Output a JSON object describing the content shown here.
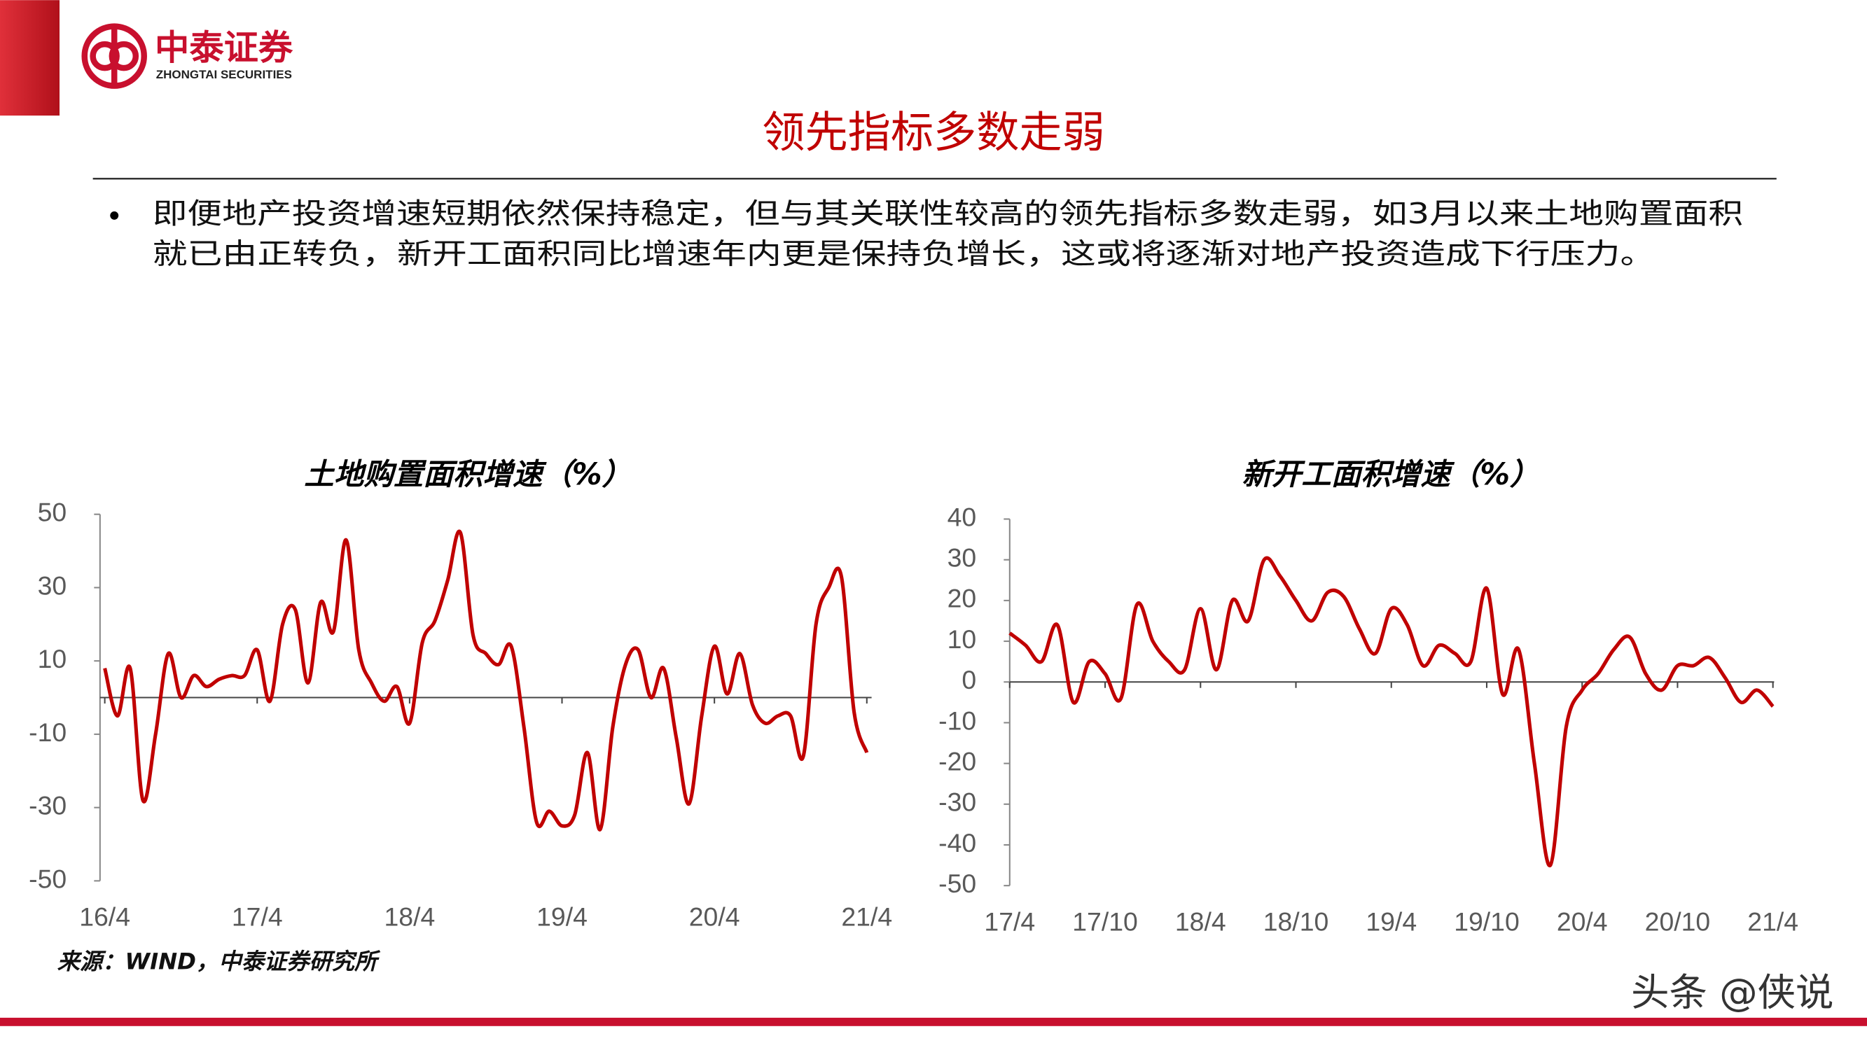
{
  "header": {
    "logo_name": "中泰证券",
    "logo_name_en": "ZHONGTAI SECURITIES",
    "title": "领先指标多数走弱",
    "bullet": [
      "即便地产投资增速短期依然保持稳定，但与其关联性较高的领先指标多数走弱，如3月以来土地购置面积",
      "就已由正转负，新开工面积同比增速年内更是保持负增长，这或将逐渐对地产投资造成下行压力。"
    ]
  },
  "source": "来源：WIND，中泰证券研究所",
  "watermark": "头条 @侠说",
  "chart_data": [
    {
      "type": "line",
      "title": "土地购置面积增速（%）",
      "categories": [
        "16/4",
        null,
        null,
        null,
        null,
        null,
        null,
        null,
        null,
        null,
        null,
        null,
        "17/4",
        null,
        null,
        null,
        null,
        null,
        null,
        null,
        null,
        null,
        null,
        null,
        "18/4",
        null,
        null,
        null,
        null,
        null,
        null,
        null,
        null,
        null,
        null,
        null,
        "19/4",
        null,
        null,
        null,
        null,
        null,
        null,
        null,
        null,
        null,
        null,
        null,
        "20/4",
        null,
        null,
        null,
        null,
        null,
        null,
        null,
        null,
        null,
        null,
        null,
        "21/4"
      ],
      "series": [
        {
          "name": "土地购置面积增速",
          "color": "#c00000",
          "values": [
            8,
            -5,
            8,
            -28,
            -10,
            12,
            0,
            6,
            3,
            5,
            6,
            6,
            13,
            -1,
            20,
            24,
            4,
            26,
            18,
            43,
            13,
            4,
            -1,
            3,
            -7,
            15,
            21,
            32,
            45,
            17,
            12,
            9,
            14,
            -8,
            -34,
            -31,
            -35,
            -32,
            -15,
            -36,
            -8,
            9,
            13,
            0,
            8,
            -11,
            -29,
            -5,
            14,
            1,
            12,
            -2,
            -7,
            -5,
            -5,
            -16,
            20,
            30,
            33,
            -4,
            -15
          ]
        }
      ],
      "ylim": [
        -50,
        50
      ],
      "yticks": [
        -50,
        -30,
        -10,
        10,
        30,
        50
      ]
    },
    {
      "type": "line",
      "title": "新开工面积增速（%）",
      "categories": [
        "17/4",
        null,
        null,
        null,
        null,
        null,
        "17/10",
        null,
        null,
        null,
        null,
        null,
        "18/4",
        null,
        null,
        null,
        null,
        null,
        "18/10",
        null,
        null,
        null,
        null,
        null,
        "19/4",
        null,
        null,
        null,
        null,
        null,
        "19/10",
        null,
        null,
        null,
        null,
        null,
        "20/4",
        null,
        null,
        null,
        null,
        null,
        "20/10",
        null,
        null,
        null,
        null,
        null,
        "21/4"
      ],
      "series": [
        {
          "name": "新开工面积增速",
          "color": "#c00000",
          "values": [
            12,
            9,
            5,
            14,
            -5,
            5,
            2,
            -4,
            19,
            10,
            5,
            3,
            18,
            3,
            20,
            15,
            30,
            26,
            20,
            15,
            22,
            21,
            13,
            7,
            18,
            14,
            4,
            9,
            7,
            5,
            23,
            -3,
            8,
            -20,
            -45,
            -11,
            -2,
            2,
            8,
            11,
            2,
            -2,
            4,
            4,
            6,
            1,
            -5,
            -2,
            -6
          ]
        }
      ],
      "ylim": [
        -50,
        40
      ],
      "yticks": [
        -50,
        -40,
        -30,
        -20,
        -10,
        0,
        10,
        20,
        30,
        40
      ]
    }
  ]
}
